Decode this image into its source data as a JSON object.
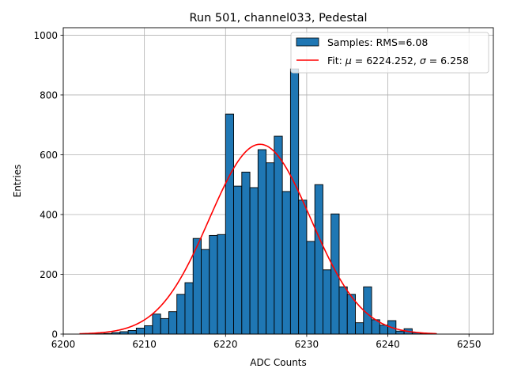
{
  "chart_data": {
    "type": "bar",
    "title": "Run 501, channel033, Pedestal",
    "xlabel": "ADC Counts",
    "ylabel": "Entries",
    "xlim": [
      6200,
      6253
    ],
    "ylim": [
      0,
      1025
    ],
    "xticks": [
      6200,
      6210,
      6220,
      6230,
      6240,
      6250
    ],
    "yticks": [
      0,
      200,
      400,
      600,
      800,
      1000
    ],
    "grid": true,
    "legend_position": "top-right",
    "bin_width": 1,
    "bin_edges_start": 6202,
    "bar_color": "#1f77b4",
    "bar_edge_color": "#000000",
    "fit_color": "#ff0000",
    "histogram": {
      "name": "Samples: RMS=6.08",
      "counts": [
        0,
        0,
        1,
        2,
        5,
        8,
        12,
        20,
        28,
        67,
        52,
        75,
        133,
        172,
        320,
        283,
        330,
        333,
        736,
        495,
        542,
        490,
        617,
        573,
        662,
        477,
        887,
        448,
        310,
        500,
        215,
        402,
        158,
        133,
        38,
        158,
        48,
        30,
        45,
        10,
        18,
        5,
        2,
        1
      ]
    },
    "fit": {
      "name": "Fit: μ = 6224.252, σ = 6.258",
      "label_prefix": "Fit: ",
      "mu_symbol": "μ",
      "mu_text": " = 6224.252, ",
      "sigma_symbol": "σ",
      "sigma_text": " = 6.258",
      "mu": 6224.252,
      "sigma": 6.258,
      "amplitude": 635,
      "x_range": [
        6202,
        6246
      ]
    }
  }
}
